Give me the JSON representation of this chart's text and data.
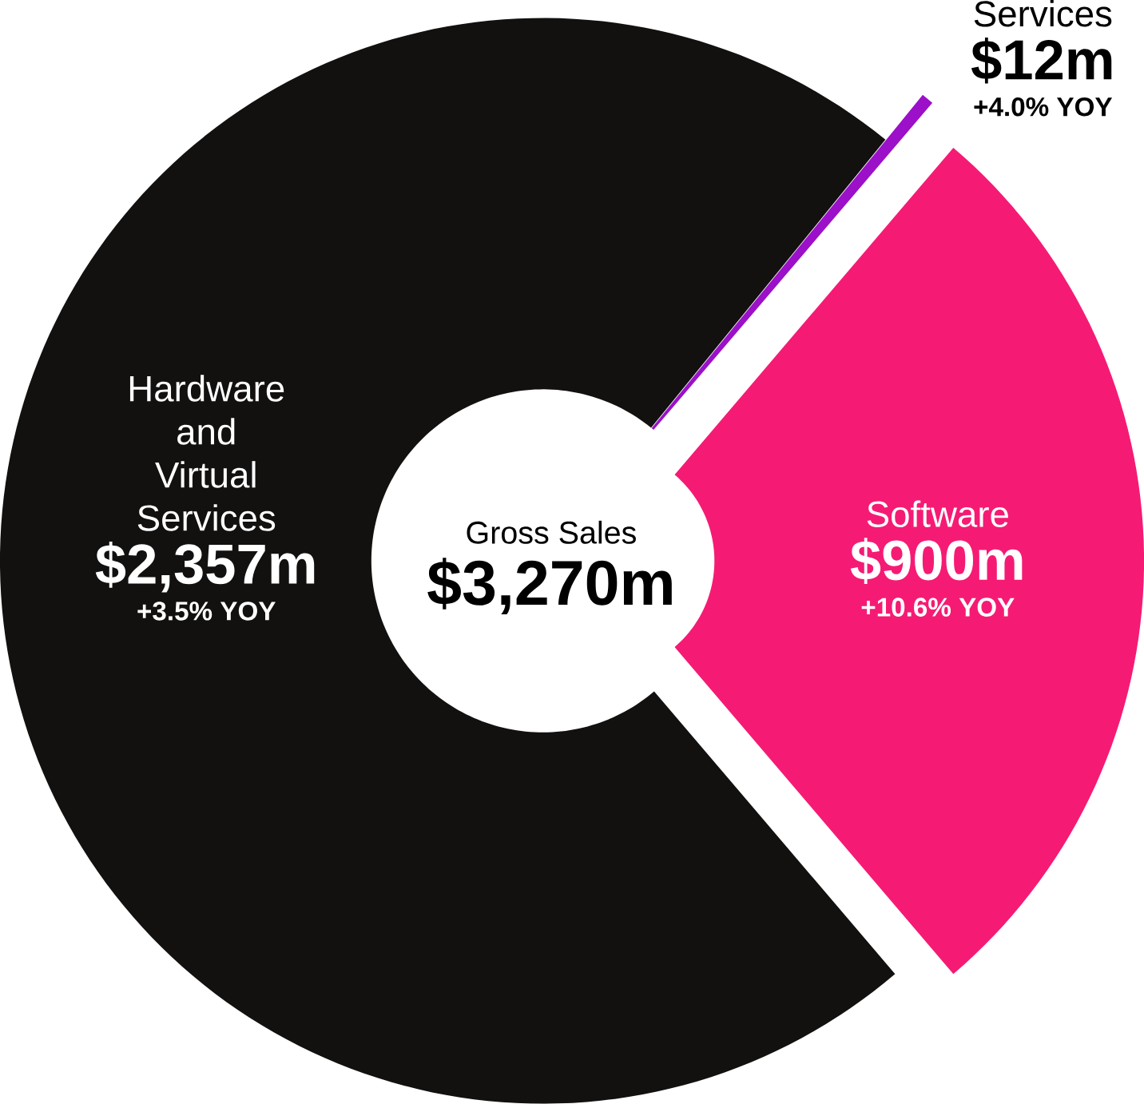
{
  "chart_data": {
    "type": "donut",
    "title": "Gross Sales",
    "subtitle": "$3,270m",
    "categories": [
      "Software",
      "Services",
      "Hardware and Virtual Services"
    ],
    "values": [
      900,
      12,
      2357
    ],
    "colors": [
      "#f51b74",
      "#9b10c8",
      "#121110"
    ],
    "value_labels": [
      "$900m",
      "$12m",
      "$2,357m"
    ],
    "annotations": [
      "+10.6% YOY",
      "+4.0% YOY",
      "+3.5% YOY"
    ]
  }
}
